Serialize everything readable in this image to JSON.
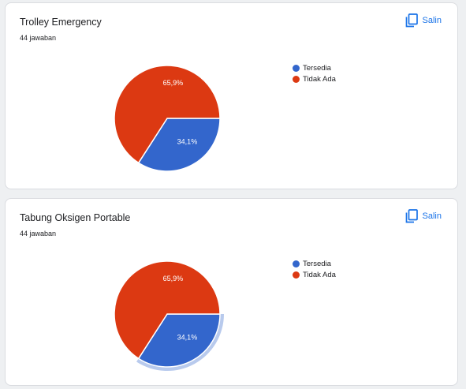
{
  "colors": {
    "series_1": "#3366cc",
    "series_2": "#dc3912",
    "accent": "#1a73e8"
  },
  "questions": [
    {
      "title": "Trolley Emergency",
      "responses": "44 jawaban",
      "copy_label": "Salin",
      "copy_icon": "copy-icon",
      "highlighted_slice": null
    },
    {
      "title": "Tabung Oksigen Portable",
      "responses": "44 jawaban",
      "copy_label": "Salin",
      "copy_icon": "copy-icon",
      "highlighted_slice": 0
    }
  ],
  "chart_data": [
    {
      "type": "pie",
      "title": "Trolley Emergency",
      "categories": [
        "Tersedia",
        "Tidak Ada"
      ],
      "values": [
        34.1,
        65.9
      ],
      "data_labels": [
        "34,1%",
        "65,9%"
      ],
      "legend_position": "right"
    },
    {
      "type": "pie",
      "title": "Tabung Oksigen Portable",
      "categories": [
        "Tersedia",
        "Tidak Ada"
      ],
      "values": [
        34.1,
        65.9
      ],
      "data_labels": [
        "34,1%",
        "65,9%"
      ],
      "legend_position": "right"
    }
  ]
}
